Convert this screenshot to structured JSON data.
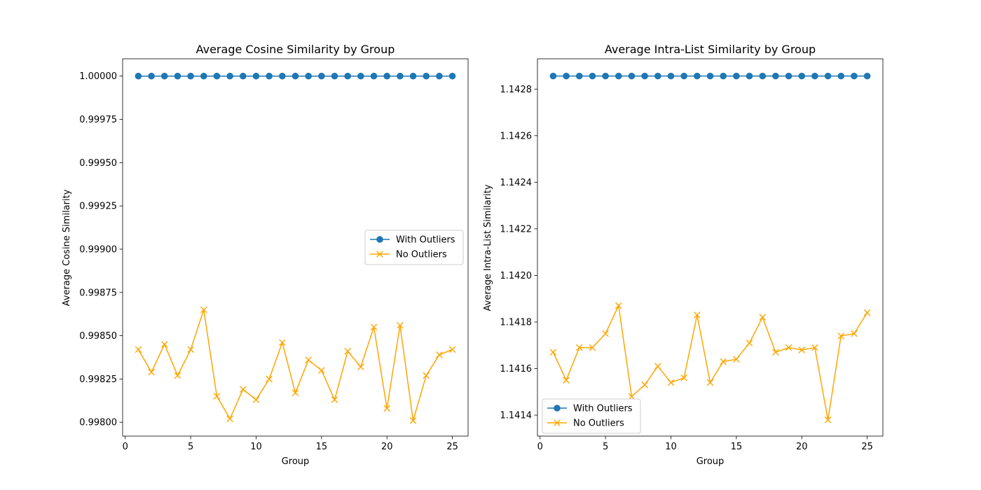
{
  "chart_data": [
    {
      "type": "line",
      "title": "Average Cosine Similarity by Group",
      "xlabel": "Group",
      "ylabel": "Average Cosine Similarity",
      "xlim": [
        -0.2,
        26.2
      ],
      "ylim": [
        0.99792,
        1.0001
      ],
      "x_ticks": [
        0,
        5,
        10,
        15,
        20,
        25
      ],
      "y_ticks": [
        0.998,
        0.99825,
        0.9985,
        0.99875,
        0.999,
        0.99925,
        0.9995,
        0.99975,
        1.0
      ],
      "y_tick_labels": [
        "0.99800",
        "0.99825",
        "0.99850",
        "0.99875",
        "0.99900",
        "0.99925",
        "0.99950",
        "0.99975",
        "1.00000"
      ],
      "legend_position": "center-right",
      "x": [
        1,
        2,
        3,
        4,
        5,
        6,
        7,
        8,
        9,
        10,
        11,
        12,
        13,
        14,
        15,
        16,
        17,
        18,
        19,
        20,
        21,
        22,
        23,
        24,
        25
      ],
      "series": [
        {
          "name": "With Outliers",
          "color": "#1f77b4",
          "marker": "circle",
          "values": [
            1.0,
            1.0,
            1.0,
            1.0,
            1.0,
            1.0,
            1.0,
            1.0,
            1.0,
            1.0,
            1.0,
            1.0,
            1.0,
            1.0,
            1.0,
            1.0,
            1.0,
            1.0,
            1.0,
            1.0,
            1.0,
            1.0,
            1.0,
            1.0,
            1.0
          ]
        },
        {
          "name": "No Outliers",
          "color": "#ffa500",
          "marker": "x",
          "values": [
            0.99842,
            0.99829,
            0.99845,
            0.99827,
            0.99842,
            0.99865,
            0.99815,
            0.99802,
            0.99819,
            0.99813,
            0.99825,
            0.99846,
            0.99817,
            0.99836,
            0.9983,
            0.99813,
            0.99841,
            0.99832,
            0.99855,
            0.99808,
            0.99856,
            0.99801,
            0.99827,
            0.99839,
            0.99842
          ]
        }
      ]
    },
    {
      "type": "line",
      "title": "Average Intra-List Similarity by Group",
      "xlabel": "Group",
      "ylabel": "Average Intra-List Similarity",
      "xlim": [
        -0.2,
        26.2
      ],
      "ylim": [
        1.14131,
        1.14293
      ],
      "x_ticks": [
        0,
        5,
        10,
        15,
        20,
        25
      ],
      "y_ticks": [
        1.1414,
        1.1416,
        1.1418,
        1.142,
        1.1422,
        1.1424,
        1.1426,
        1.1428
      ],
      "y_tick_labels": [
        "1.1414",
        "1.1416",
        "1.1418",
        "1.1420",
        "1.1422",
        "1.1424",
        "1.1426",
        "1.1428"
      ],
      "legend_position": "lower-left",
      "x": [
        1,
        2,
        3,
        4,
        5,
        6,
        7,
        8,
        9,
        10,
        11,
        12,
        13,
        14,
        15,
        16,
        17,
        18,
        19,
        20,
        21,
        22,
        23,
        24,
        25
      ],
      "series": [
        {
          "name": "With Outliers",
          "color": "#1f77b4",
          "marker": "circle",
          "values": [
            1.142856,
            1.142856,
            1.142856,
            1.142856,
            1.142856,
            1.142856,
            1.142856,
            1.142856,
            1.142856,
            1.142856,
            1.142856,
            1.142856,
            1.142856,
            1.142856,
            1.142856,
            1.142856,
            1.142856,
            1.142856,
            1.142856,
            1.142856,
            1.142856,
            1.142856,
            1.142856,
            1.142856,
            1.142856
          ]
        },
        {
          "name": "No Outliers",
          "color": "#ffa500",
          "marker": "x",
          "values": [
            1.14167,
            1.14155,
            1.14169,
            1.14169,
            1.14175,
            1.14187,
            1.14148,
            1.14153,
            1.14161,
            1.14154,
            1.14156,
            1.14183,
            1.14154,
            1.14163,
            1.14164,
            1.14171,
            1.14182,
            1.14167,
            1.14169,
            1.14168,
            1.14169,
            1.14138,
            1.14174,
            1.14175,
            1.14184
          ]
        }
      ]
    }
  ]
}
